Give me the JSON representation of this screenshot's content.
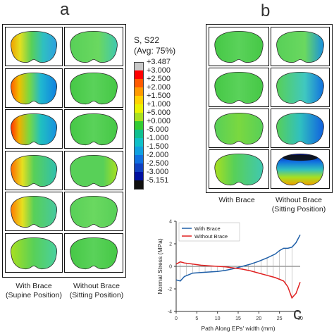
{
  "panels": {
    "a": {
      "letter": "a",
      "caption_left": [
        "With Brace",
        "(Supine Position)"
      ],
      "caption_right": [
        "Without Brace",
        "(Sitting Position)"
      ]
    },
    "b": {
      "letter": "b",
      "caption_left": [
        "With Brace",
        ""
      ],
      "caption_right": [
        "Without Brace",
        "(Sitting Position)"
      ]
    },
    "c": {
      "letter": "c"
    }
  },
  "legend": {
    "title_line1": "S, S22",
    "title_line2": "(Avg: 75%)",
    "labels": [
      "+3.487",
      "+3.000",
      "+2.500",
      "+2.000",
      "+1.500",
      "+1.000",
      "+5.000",
      "+0.000",
      "-5.000",
      "-1.000",
      "-1.500",
      "-2.000",
      "-2.500",
      "-3.000",
      "-5.151"
    ],
    "colors": [
      "#c8c8c8",
      "#ff0000",
      "#ff5a00",
      "#ff9a00",
      "#ffd200",
      "#eaf200",
      "#a8e020",
      "#33cc33",
      "#10c090",
      "#10c0c8",
      "#10a0e0",
      "#1070e0",
      "#1040c0",
      "#0010a0",
      "#101010"
    ]
  },
  "chart_data": {
    "type": "line",
    "title": "",
    "xlabel": "Path Along EPs' width (mm)",
    "ylabel": "Normal Stress (MPa)",
    "xlim": [
      0,
      30
    ],
    "ylim": [
      -4,
      4
    ],
    "xticks": [
      0,
      5,
      10,
      15,
      20,
      25,
      30
    ],
    "yticks": [
      -4,
      -2,
      0,
      2,
      4
    ],
    "legend_position": "top-left",
    "series": [
      {
        "name": "With Brace",
        "color": "#1f5fa8",
        "x": [
          0,
          1,
          2,
          4,
          6,
          8,
          10,
          12,
          14,
          16,
          18,
          20,
          22,
          24,
          25,
          26,
          27,
          28,
          29,
          30
        ],
        "y": [
          -1.2,
          -1.3,
          -0.9,
          -0.6,
          -0.55,
          -0.5,
          -0.45,
          -0.35,
          -0.2,
          0.0,
          0.2,
          0.45,
          0.75,
          1.1,
          1.4,
          1.6,
          1.6,
          1.7,
          2.1,
          2.8
        ]
      },
      {
        "name": "Without Brace",
        "color": "#e02020",
        "x": [
          0,
          1,
          2,
          4,
          6,
          8,
          10,
          12,
          14,
          16,
          18,
          20,
          22,
          24,
          26,
          27,
          28,
          29,
          30
        ],
        "y": [
          0.2,
          0.4,
          0.3,
          0.2,
          0.1,
          0.05,
          0.0,
          -0.05,
          -0.15,
          -0.25,
          -0.4,
          -0.6,
          -0.8,
          -1.0,
          -1.3,
          -1.8,
          -2.8,
          -2.4,
          -1.4
        ]
      }
    ]
  }
}
